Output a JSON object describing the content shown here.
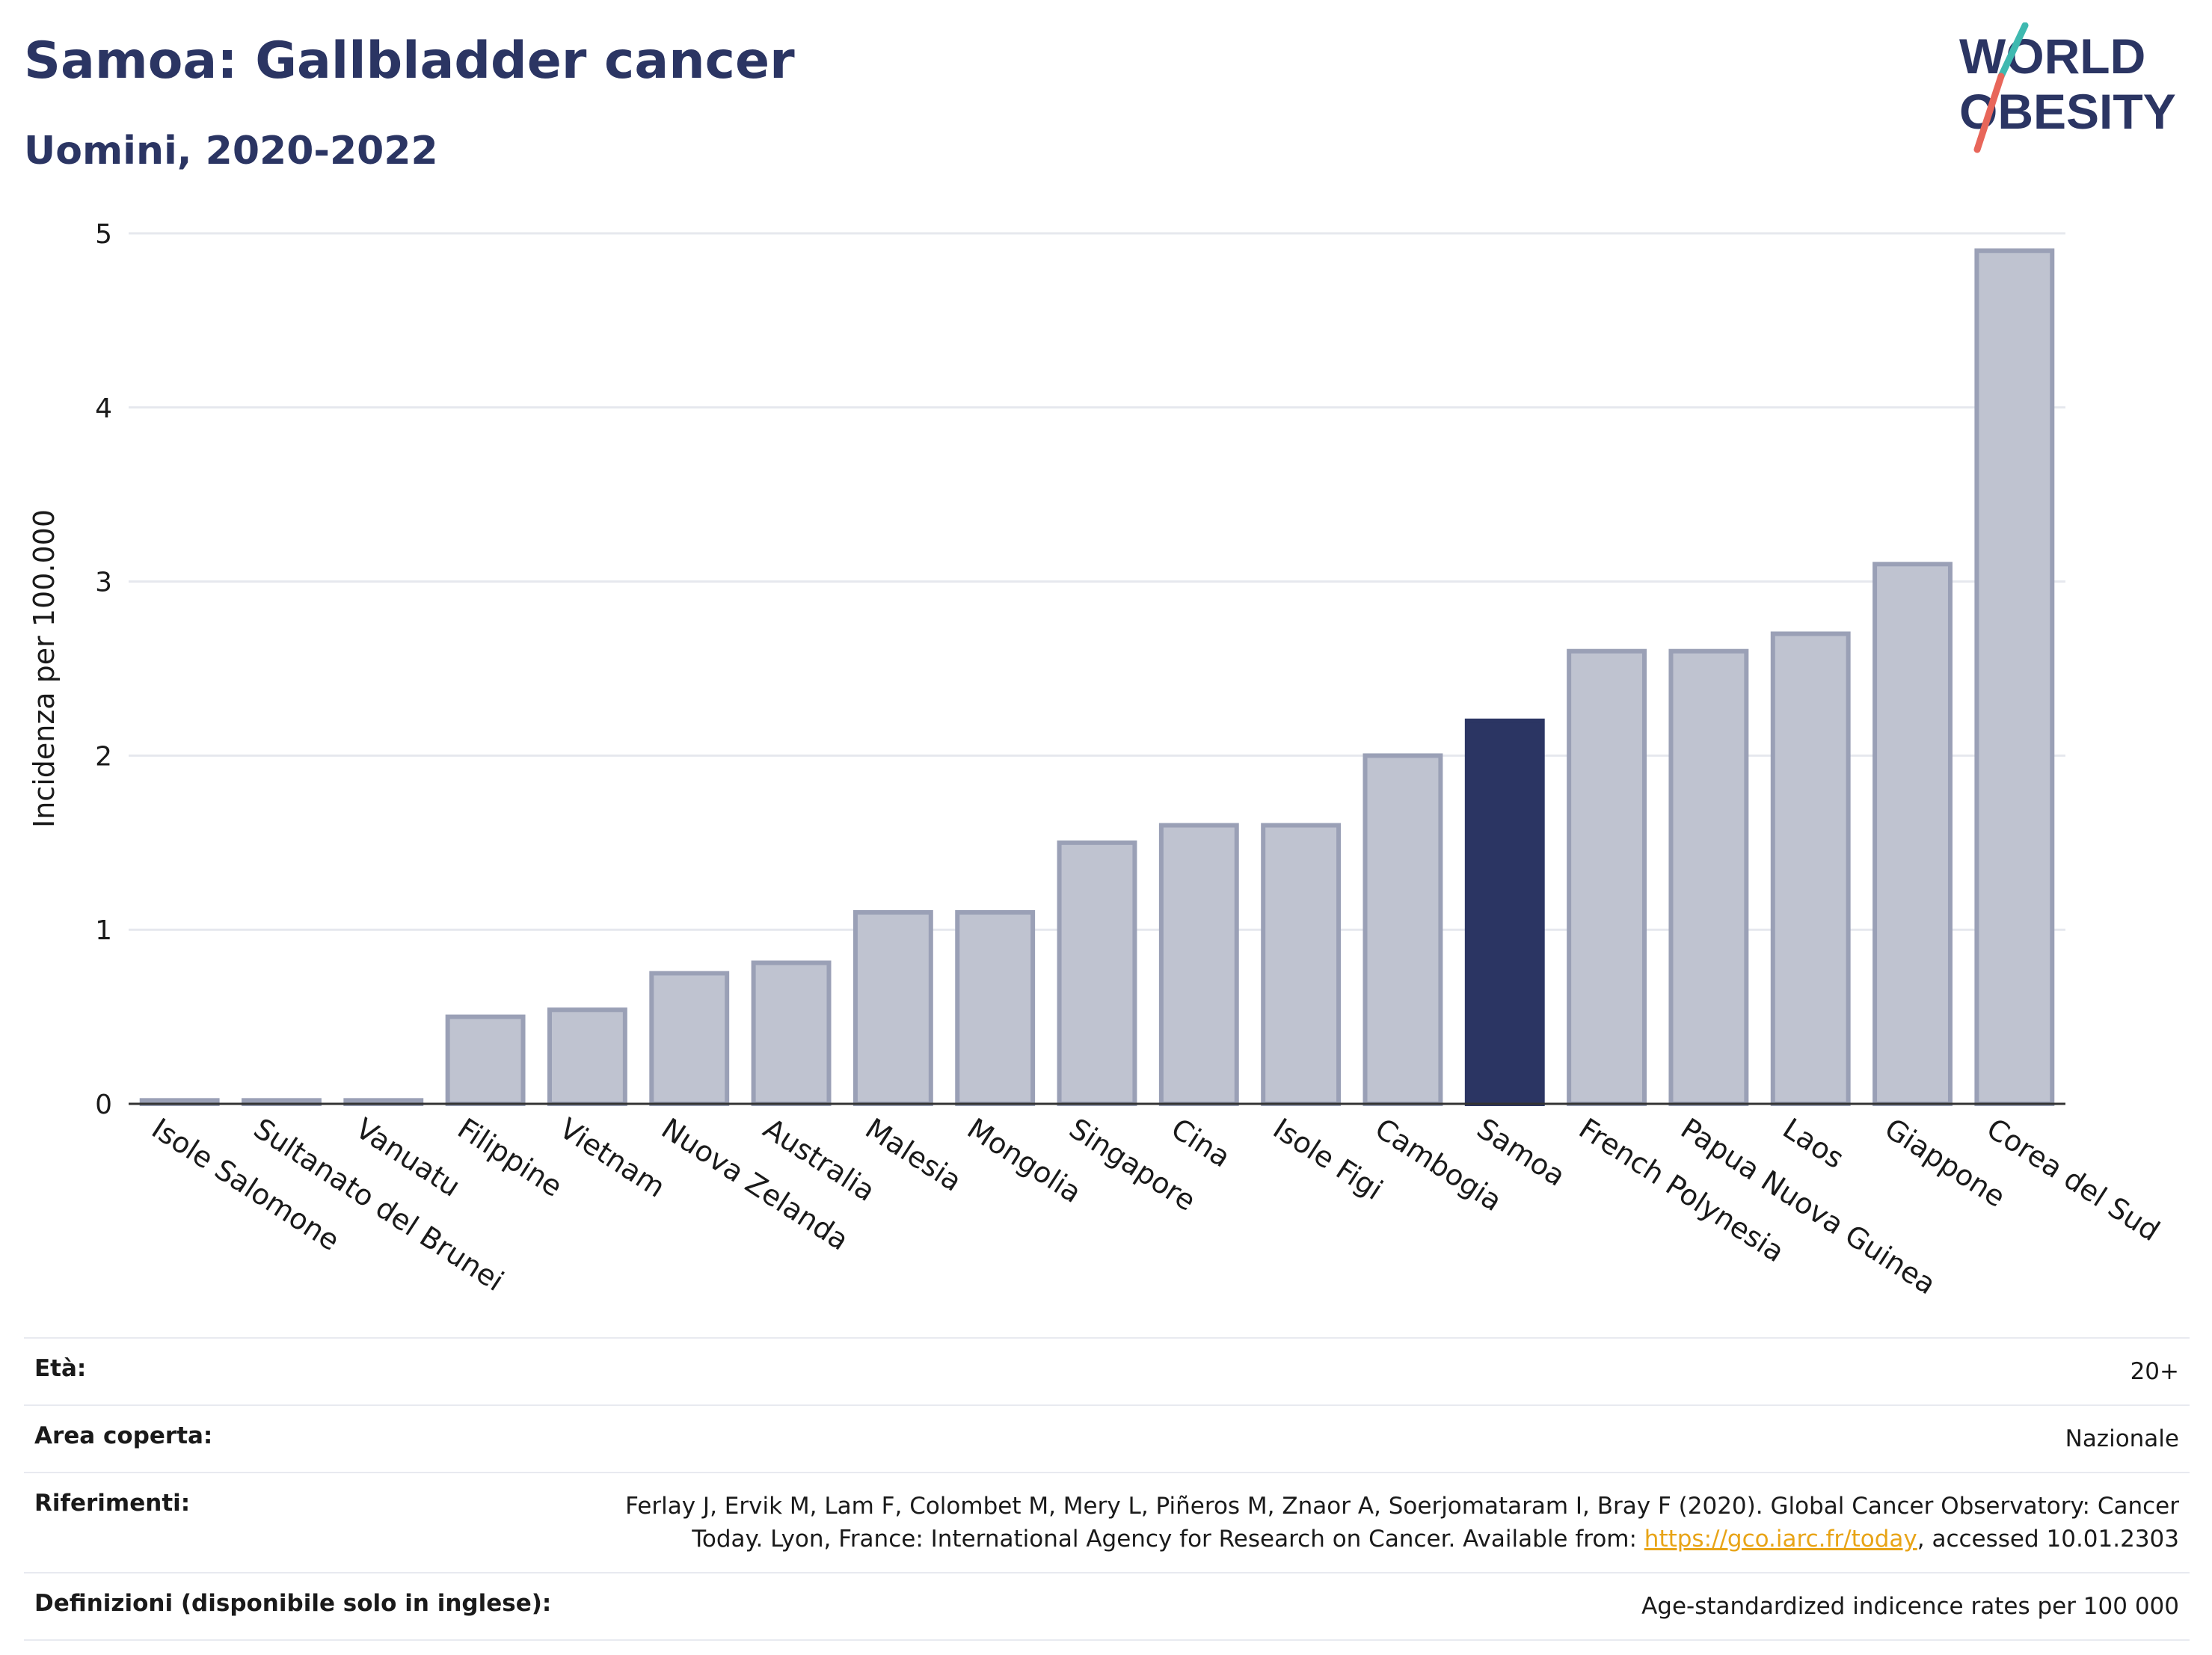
{
  "header": {
    "title": "Samoa: Gallbladder cancer",
    "subtitle": "Uomini, 2020-2022"
  },
  "logo": {
    "line1": "WORLD",
    "line2": "OBESITY"
  },
  "colors": {
    "bar": "#bfc3d0",
    "bar_stroke": "#9aa0b6",
    "highlight": "#2b3563",
    "grid": "#e6e8ee"
  },
  "chart_data": {
    "type": "bar",
    "ylabel": "Incidenza per 100.000",
    "ylim": [
      0,
      5
    ],
    "yticks": [
      0,
      1,
      2,
      3,
      4,
      5
    ],
    "grid": true,
    "highlight": "Samoa",
    "categories": [
      "Isole Salomone",
      "Sultanato del Brunei",
      "Vanuatu",
      "Filippine",
      "Vietnam",
      "Nuova Zelanda",
      "Australia",
      "Malesia",
      "Mongolia",
      "Singapore",
      "Cina",
      "Isole Figi",
      "Cambogia",
      "Samoa",
      "French Polynesia",
      "Papua Nuova Guinea",
      "Laos",
      "Giappone",
      "Corea del Sud"
    ],
    "values": [
      0.02,
      0.02,
      0.02,
      0.5,
      0.54,
      0.75,
      0.81,
      1.1,
      1.1,
      1.5,
      1.6,
      1.6,
      2.0,
      2.2,
      2.6,
      2.6,
      2.7,
      3.1,
      4.9
    ]
  },
  "meta": [
    {
      "label": "Età:",
      "value": "20+"
    },
    {
      "label": "Area coperta:",
      "value": "Nazionale"
    },
    {
      "label": "Riferimenti:",
      "value_line1": "Ferlay J, Ervik M, Lam F, Colombet M, Mery L, Piñeros M, Znaor A, Soerjomataram I, Bray F (2020). Global Cancer Observatory: Cancer",
      "value_line2_pre": "Today. Lyon, France: International Agency for Research on Cancer. Available from: ",
      "link": "https://gco.iarc.fr/today",
      "value_line2_post": ", accessed 10.01.2303"
    },
    {
      "label": "Definizioni (disponibile solo in inglese):",
      "value": "Age-standardized indicence rates per 100 000"
    }
  ]
}
